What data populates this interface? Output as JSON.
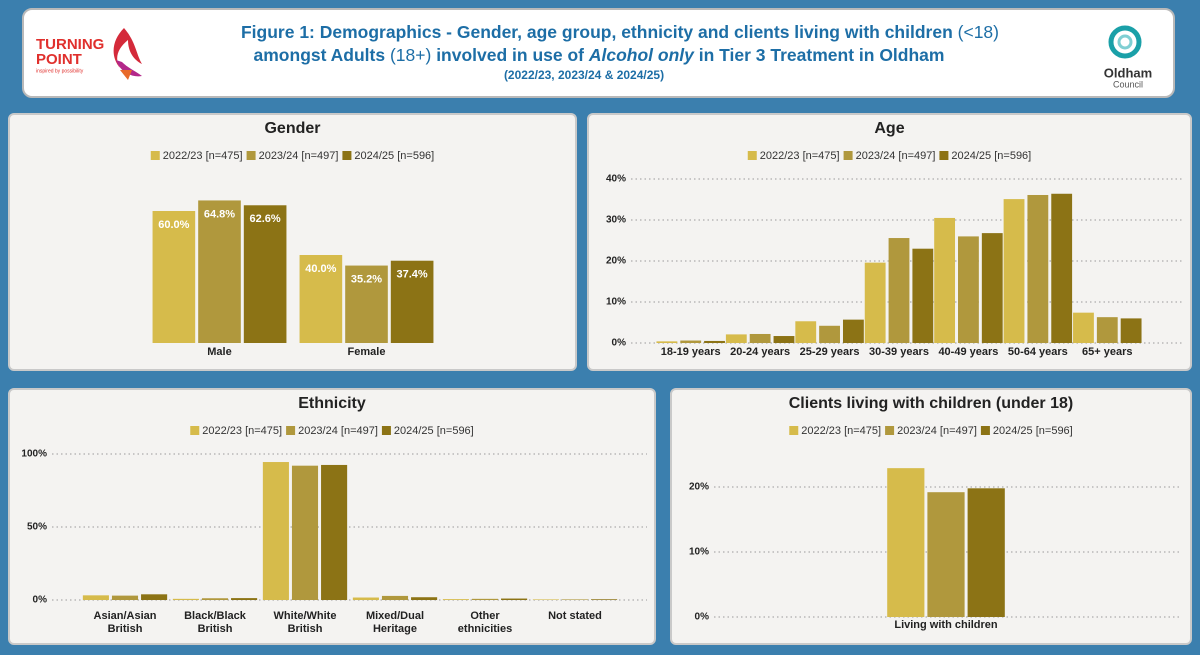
{
  "header": {
    "title_line1": [
      "Figure 1: Demographics - Gender, age group, ethnicity and clients living with children",
      "(<18)"
    ],
    "title_line2": [
      "amongst Adults",
      "(18+)",
      "involved in use of",
      "Alcohol only",
      "in Tier 3 Treatment in Oldham"
    ],
    "subtitle": "(2022/23, 2023/24 & 2024/25)",
    "logo_left": [
      "TURNING",
      "POINT",
      "inspired by possibility"
    ],
    "logo_right": [
      "Oldham",
      "Council"
    ]
  },
  "chart_data": [
    {
      "type": "bar",
      "title": "Gender",
      "categories": [
        "Male",
        "Female"
      ],
      "series": [
        {
          "name": "2022/23 [n=475]",
          "color": "#d6bb4b",
          "values": [
            60.0,
            40.0
          ],
          "value_labels": [
            "60.0%",
            "40.0%"
          ]
        },
        {
          "name": "2023/24 [n=497]",
          "color": "#b0983d",
          "values": [
            64.8,
            35.2
          ],
          "value_labels": [
            "64.8%",
            "35.2%"
          ]
        },
        {
          "name": "2024/25 [n=596]",
          "color": "#8c7315",
          "values": [
            62.6,
            37.4
          ],
          "value_labels": [
            "62.6%",
            "37.4%"
          ]
        }
      ]
    },
    {
      "type": "bar",
      "title": "Age",
      "categories": [
        "18-19 years",
        "20-24 years",
        "25-29 years",
        "30-39 years",
        "40-49 years",
        "50-64 years",
        "65+ years"
      ],
      "series": [
        {
          "name": "2022/23 [n=475]",
          "color": "#d6bb4b",
          "values": [
            0.4,
            2.1,
            5.3,
            19.6,
            30.5,
            35.1,
            7.4
          ]
        },
        {
          "name": "2023/24 [n=497]",
          "color": "#b0983d",
          "values": [
            0.6,
            2.2,
            4.2,
            25.6,
            26.0,
            36.1,
            6.3
          ]
        },
        {
          "name": "2024/25 [n=596]",
          "color": "#8c7315",
          "values": [
            0.5,
            1.7,
            5.7,
            23.0,
            26.8,
            36.4,
            6.0
          ]
        }
      ],
      "ylim": [
        0,
        40
      ],
      "yticks": [
        {
          "value": 0,
          "label": "0%"
        },
        {
          "value": 10,
          "label": "10%"
        },
        {
          "value": 20,
          "label": "20%"
        },
        {
          "value": 30,
          "label": "30%"
        },
        {
          "value": 40,
          "label": "40%"
        }
      ],
      "grid": true
    },
    {
      "type": "bar",
      "title": "Ethnicity",
      "categories": [
        "Asian/Asian British",
        "Black/Black British",
        "White/White British",
        "Mixed/Dual Heritage",
        "Other ethnicities",
        "Not stated"
      ],
      "series": [
        {
          "name": "2022/23 [n=475]",
          "color": "#d6bb4b",
          "values": [
            3.2,
            0.8,
            94.5,
            1.7,
            0.6,
            0.4
          ]
        },
        {
          "name": "2023/24 [n=497]",
          "color": "#b0983d",
          "values": [
            3.0,
            1.2,
            92.0,
            2.8,
            0.8,
            0.4
          ]
        },
        {
          "name": "2024/25 [n=596]",
          "color": "#8c7315",
          "values": [
            3.9,
            1.3,
            92.5,
            1.9,
            1.0,
            0.5
          ]
        }
      ],
      "ylim": [
        0,
        100
      ],
      "yticks": [
        {
          "value": 0,
          "label": "0%"
        },
        {
          "value": 50,
          "label": "50%"
        },
        {
          "value": 100,
          "label": "100%"
        }
      ],
      "grid": true
    },
    {
      "type": "bar",
      "title": "Clients living with children (under 18)",
      "categories": [
        "Living with children"
      ],
      "series": [
        {
          "name": "2022/23 [n=475]",
          "color": "#d6bb4b",
          "values": [
            22.9
          ]
        },
        {
          "name": "2023/24 [n=497]",
          "color": "#b0983d",
          "values": [
            19.2
          ]
        },
        {
          "name": "2024/25 [n=596]",
          "color": "#8c7315",
          "values": [
            19.8
          ]
        }
      ],
      "ylim": [
        0,
        25
      ],
      "yticks": [
        {
          "value": 0,
          "label": "0%"
        },
        {
          "value": 10,
          "label": "10%"
        },
        {
          "value": 20,
          "label": "20%"
        }
      ],
      "grid": true
    }
  ]
}
